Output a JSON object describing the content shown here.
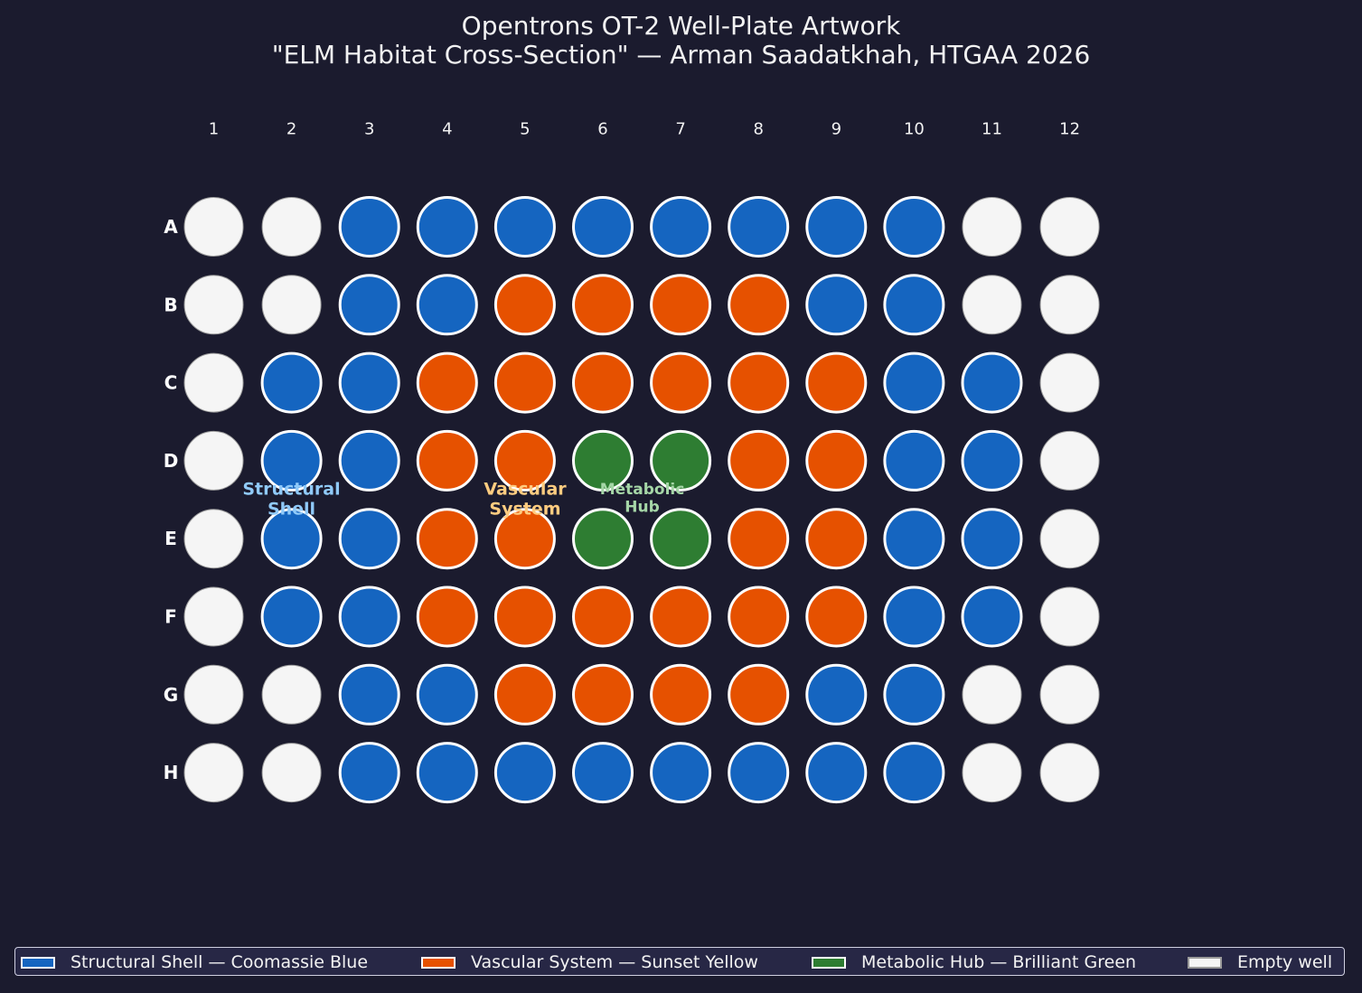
{
  "title": {
    "line1": "Opentrons OT-2 Well-Plate Artwork",
    "line2": "\"ELM Habitat Cross-Section\" — Arman Saadatkhah, HTGAA 2026"
  },
  "chart_data": {
    "type": "heatmap",
    "columns": [
      "1",
      "2",
      "3",
      "4",
      "5",
      "6",
      "7",
      "8",
      "9",
      "10",
      "11",
      "12"
    ],
    "rows": [
      "A",
      "B",
      "C",
      "D",
      "E",
      "F",
      "G",
      "H"
    ],
    "grid": [
      [
        "E",
        "E",
        "S",
        "S",
        "S",
        "S",
        "S",
        "S",
        "S",
        "S",
        "E",
        "E"
      ],
      [
        "E",
        "E",
        "S",
        "S",
        "V",
        "V",
        "V",
        "V",
        "S",
        "S",
        "E",
        "E"
      ],
      [
        "E",
        "S",
        "S",
        "V",
        "V",
        "V",
        "V",
        "V",
        "V",
        "S",
        "S",
        "E"
      ],
      [
        "E",
        "S",
        "S",
        "V",
        "V",
        "M",
        "M",
        "V",
        "V",
        "S",
        "S",
        "E"
      ],
      [
        "E",
        "S",
        "S",
        "V",
        "V",
        "M",
        "M",
        "V",
        "V",
        "S",
        "S",
        "E"
      ],
      [
        "E",
        "S",
        "S",
        "V",
        "V",
        "V",
        "V",
        "V",
        "V",
        "S",
        "S",
        "E"
      ],
      [
        "E",
        "E",
        "S",
        "S",
        "V",
        "V",
        "V",
        "V",
        "S",
        "S",
        "E",
        "E"
      ],
      [
        "E",
        "E",
        "S",
        "S",
        "S",
        "S",
        "S",
        "S",
        "S",
        "S",
        "E",
        "E"
      ]
    ],
    "categories": {
      "S": {
        "label": "Structural Shell — Coomassie Blue",
        "color": "#1565c0"
      },
      "V": {
        "label": "Vascular System — Sunset Yellow",
        "color": "#e65100"
      },
      "M": {
        "label": "Metabolic Hub — Brilliant Green",
        "color": "#2e7d32"
      },
      "E": {
        "label": "Empty well",
        "color": "#f5f5f5"
      }
    },
    "annotations": [
      {
        "lines": [
          "Structural",
          "Shell"
        ],
        "color": "#90caf9"
      },
      {
        "lines": [
          "Vascular",
          "System"
        ],
        "color": "#ffcc80"
      },
      {
        "lines": [
          "Metabolic",
          "Hub"
        ],
        "color": "#a5d6a7"
      }
    ],
    "legend_placement": "bottom",
    "grid_lines": false
  }
}
